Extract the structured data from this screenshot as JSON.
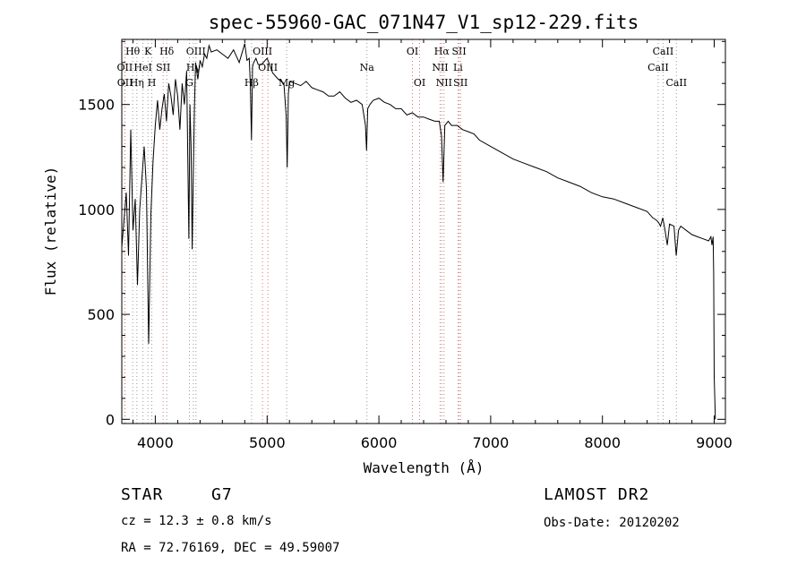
{
  "chart_data": {
    "type": "line",
    "title": "spec-55960-GAC_071N47_V1_sp12-229.fits",
    "xlabel": "Wavelength (Å)",
    "ylabel": "Flux (relative)",
    "xlim": [
      3700,
      9100
    ],
    "ylim": [
      -20,
      1810
    ],
    "xticks": [
      4000,
      5000,
      6000,
      7000,
      8000,
      9000
    ],
    "yticks": [
      0,
      500,
      1000,
      1500
    ],
    "grid": false,
    "series": [
      {
        "x": [
          3700,
          3720,
          3740,
          3760,
          3780,
          3800,
          3820,
          3840,
          3860,
          3880,
          3900,
          3920,
          3940,
          3960,
          3980,
          4000,
          4020,
          4040,
          4060,
          4080,
          4100,
          4120,
          4140,
          4160,
          4180,
          4200,
          4220,
          4240,
          4260,
          4280,
          4300,
          4310,
          4320,
          4330,
          4340,
          4350,
          4360,
          4380,
          4400,
          4420,
          4440,
          4460,
          4480,
          4500,
          4550,
          4600,
          4650,
          4700,
          4750,
          4800,
          4820,
          4840,
          4850,
          4860,
          4870,
          4880,
          4900,
          4920,
          4950,
          5000,
          5050,
          5100,
          5150,
          5170,
          5180,
          5190,
          5200,
          5250,
          5300,
          5350,
          5400,
          5450,
          5500,
          5550,
          5600,
          5650,
          5700,
          5750,
          5800,
          5850,
          5880,
          5890,
          5900,
          5920,
          5950,
          6000,
          6050,
          6100,
          6150,
          6200,
          6250,
          6300,
          6350,
          6400,
          6450,
          6500,
          6540,
          6560,
          6575,
          6590,
          6620,
          6650,
          6700,
          6750,
          6800,
          6850,
          6900,
          7000,
          7100,
          7200,
          7300,
          7400,
          7500,
          7600,
          7700,
          7800,
          7900,
          8000,
          8100,
          8200,
          8300,
          8400,
          8450,
          8480,
          8500,
          8520,
          8540,
          8560,
          8580,
          8600,
          8640,
          8660,
          8680,
          8700,
          8750,
          8800,
          8850,
          8900,
          8950,
          8960,
          8970,
          8980,
          8990,
          8995,
          9000,
          9010
        ],
        "values": [
          820,
          950,
          1080,
          780,
          1380,
          900,
          1050,
          640,
          1000,
          1150,
          1300,
          1100,
          360,
          980,
          1230,
          1400,
          1520,
          1380,
          1480,
          1550,
          1420,
          1600,
          1540,
          1450,
          1620,
          1540,
          1380,
          1600,
          1500,
          1660,
          860,
          1500,
          1290,
          810,
          1180,
          1480,
          1700,
          1620,
          1710,
          1680,
          1740,
          1720,
          1780,
          1750,
          1760,
          1740,
          1720,
          1760,
          1700,
          1790,
          1710,
          1720,
          1600,
          1330,
          1680,
          1700,
          1720,
          1690,
          1690,
          1720,
          1650,
          1620,
          1600,
          1450,
          1200,
          1550,
          1610,
          1600,
          1590,
          1610,
          1580,
          1570,
          1560,
          1540,
          1540,
          1560,
          1530,
          1510,
          1520,
          1500,
          1400,
          1280,
          1480,
          1500,
          1520,
          1530,
          1510,
          1500,
          1480,
          1480,
          1450,
          1460,
          1440,
          1440,
          1430,
          1420,
          1420,
          1350,
          1130,
          1400,
          1420,
          1400,
          1400,
          1380,
          1370,
          1360,
          1330,
          1300,
          1270,
          1240,
          1220,
          1200,
          1180,
          1150,
          1130,
          1110,
          1080,
          1060,
          1050,
          1030,
          1010,
          990,
          960,
          950,
          940,
          920,
          960,
          900,
          830,
          930,
          920,
          780,
          900,
          920,
          900,
          880,
          870,
          860,
          850,
          860,
          870,
          830,
          870,
          700,
          200,
          0
        ]
      }
    ],
    "line_marks": [
      {
        "label": "Hθ",
        "w": 3798,
        "row": 0,
        "color": "#999999"
      },
      {
        "label": "K",
        "w": 3934,
        "row": 0,
        "color": "#999999"
      },
      {
        "label": "Hδ",
        "w": 4102,
        "row": 0,
        "color": "#999999"
      },
      {
        "label": "OIII",
        "w": 4363,
        "row": 0,
        "color": "#999999"
      },
      {
        "label": "OIII",
        "w": 4959,
        "row": 0,
        "color": "#e07070"
      },
      {
        "label": "OI",
        "w": 6300,
        "row": 0,
        "color": "#e07070"
      },
      {
        "label": "Hα",
        "w": 6563,
        "row": 0,
        "color": "#999999"
      },
      {
        "label": "SII",
        "w": 6717,
        "row": 0,
        "color": "#e07070"
      },
      {
        "label": "CaII",
        "w": 8542,
        "row": 0,
        "color": "#999999"
      },
      {
        "label": "OII",
        "w": 3727,
        "row": 1,
        "color": "#e07070"
      },
      {
        "label": "HeI",
        "w": 3889,
        "row": 1,
        "color": "#999999"
      },
      {
        "label": "SII",
        "w": 4070,
        "row": 1,
        "color": "#e07070"
      },
      {
        "label": "Hγ",
        "w": 4340,
        "row": 1,
        "color": "#999999"
      },
      {
        "label": "OIII",
        "w": 5007,
        "row": 1,
        "color": "#e07070"
      },
      {
        "label": "Na",
        "w": 5893,
        "row": 1,
        "color": "#999999"
      },
      {
        "label": "NII",
        "w": 6548,
        "row": 1,
        "color": "#e07070"
      },
      {
        "label": "Li",
        "w": 6708,
        "row": 1,
        "color": "#999999"
      },
      {
        "label": "CaII",
        "w": 8498,
        "row": 1,
        "color": "#999999"
      },
      {
        "label": "OII",
        "w": 3729,
        "row": 2,
        "color": "#e07070"
      },
      {
        "label": "Hη",
        "w": 3835,
        "row": 2,
        "color": "#999999"
      },
      {
        "label": "H",
        "w": 3968,
        "row": 2,
        "color": "#999999"
      },
      {
        "label": "G",
        "w": 4305,
        "row": 2,
        "color": "#999999"
      },
      {
        "label": "Hβ",
        "w": 4861,
        "row": 2,
        "color": "#999999"
      },
      {
        "label": "Mg",
        "w": 5175,
        "row": 2,
        "color": "#999999"
      },
      {
        "label": "OI",
        "w": 6364,
        "row": 2,
        "color": "#e07070"
      },
      {
        "label": "NII",
        "w": 6583,
        "row": 2,
        "color": "#e07070"
      },
      {
        "label": "SII",
        "w": 6731,
        "row": 2,
        "color": "#e07070"
      },
      {
        "label": "CaII",
        "w": 8662,
        "row": 2,
        "color": "#999999"
      }
    ]
  },
  "info": {
    "class_label": "STAR",
    "subclass": "G7",
    "cz": "cz = 12.3 ± 0.8 km/s",
    "coords": "RA =  72.76169, DEC =  49.59007",
    "survey": "LAMOST DR2",
    "obs_date": "Obs-Date: 20120202"
  }
}
